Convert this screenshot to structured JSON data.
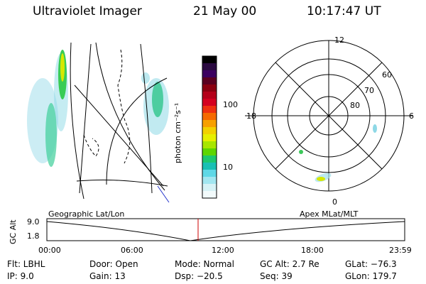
{
  "header": {
    "instrument": "Ultraviolet Imager",
    "date": "21 May 00",
    "time": "10:17:47 UT"
  },
  "colorbar": {
    "unit_label": "photon cm⁻²s⁻¹",
    "ticks": [
      "100",
      "10"
    ],
    "colors": [
      "#000000",
      "#2a0a40",
      "#3b0060",
      "#5a0020",
      "#8a0010",
      "#b4001a",
      "#d40020",
      "#ee3010",
      "#f56a00",
      "#f7a000",
      "#f2d100",
      "#e6ef00",
      "#a8e600",
      "#5ed600",
      "#1ec86e",
      "#19c0b4",
      "#5fd8e6",
      "#a2e6f0",
      "#d6f2f6",
      "#f2fafb"
    ]
  },
  "polar_plot": {
    "mlt_labels": {
      "top": "12",
      "left": "18",
      "right": "6",
      "bottom": "0"
    },
    "lat_labels": [
      "60",
      "70",
      "80"
    ]
  },
  "timeline": {
    "axis_label": "GC Alt",
    "y_labels": [
      "9.0",
      "1.8"
    ],
    "left_title": "Geographic Lat/Lon",
    "right_title": "Apex MLat/MLT",
    "x_labels": [
      "00:00",
      "06:00",
      "12:00",
      "18:00",
      "23:59"
    ]
  },
  "info": {
    "filter": "Flt: LBHL",
    "ip": "IP: 9.0",
    "door": "Door: Open",
    "gain": "Gain: 13",
    "mode": "Mode: Normal",
    "dsp": "Dsp: −20.5",
    "gc_alt": "GC Alt: 2.7 Re",
    "seq": "Seq: 39",
    "glat": "GLat: −76.3",
    "glon": "GLon: 179.7"
  }
}
